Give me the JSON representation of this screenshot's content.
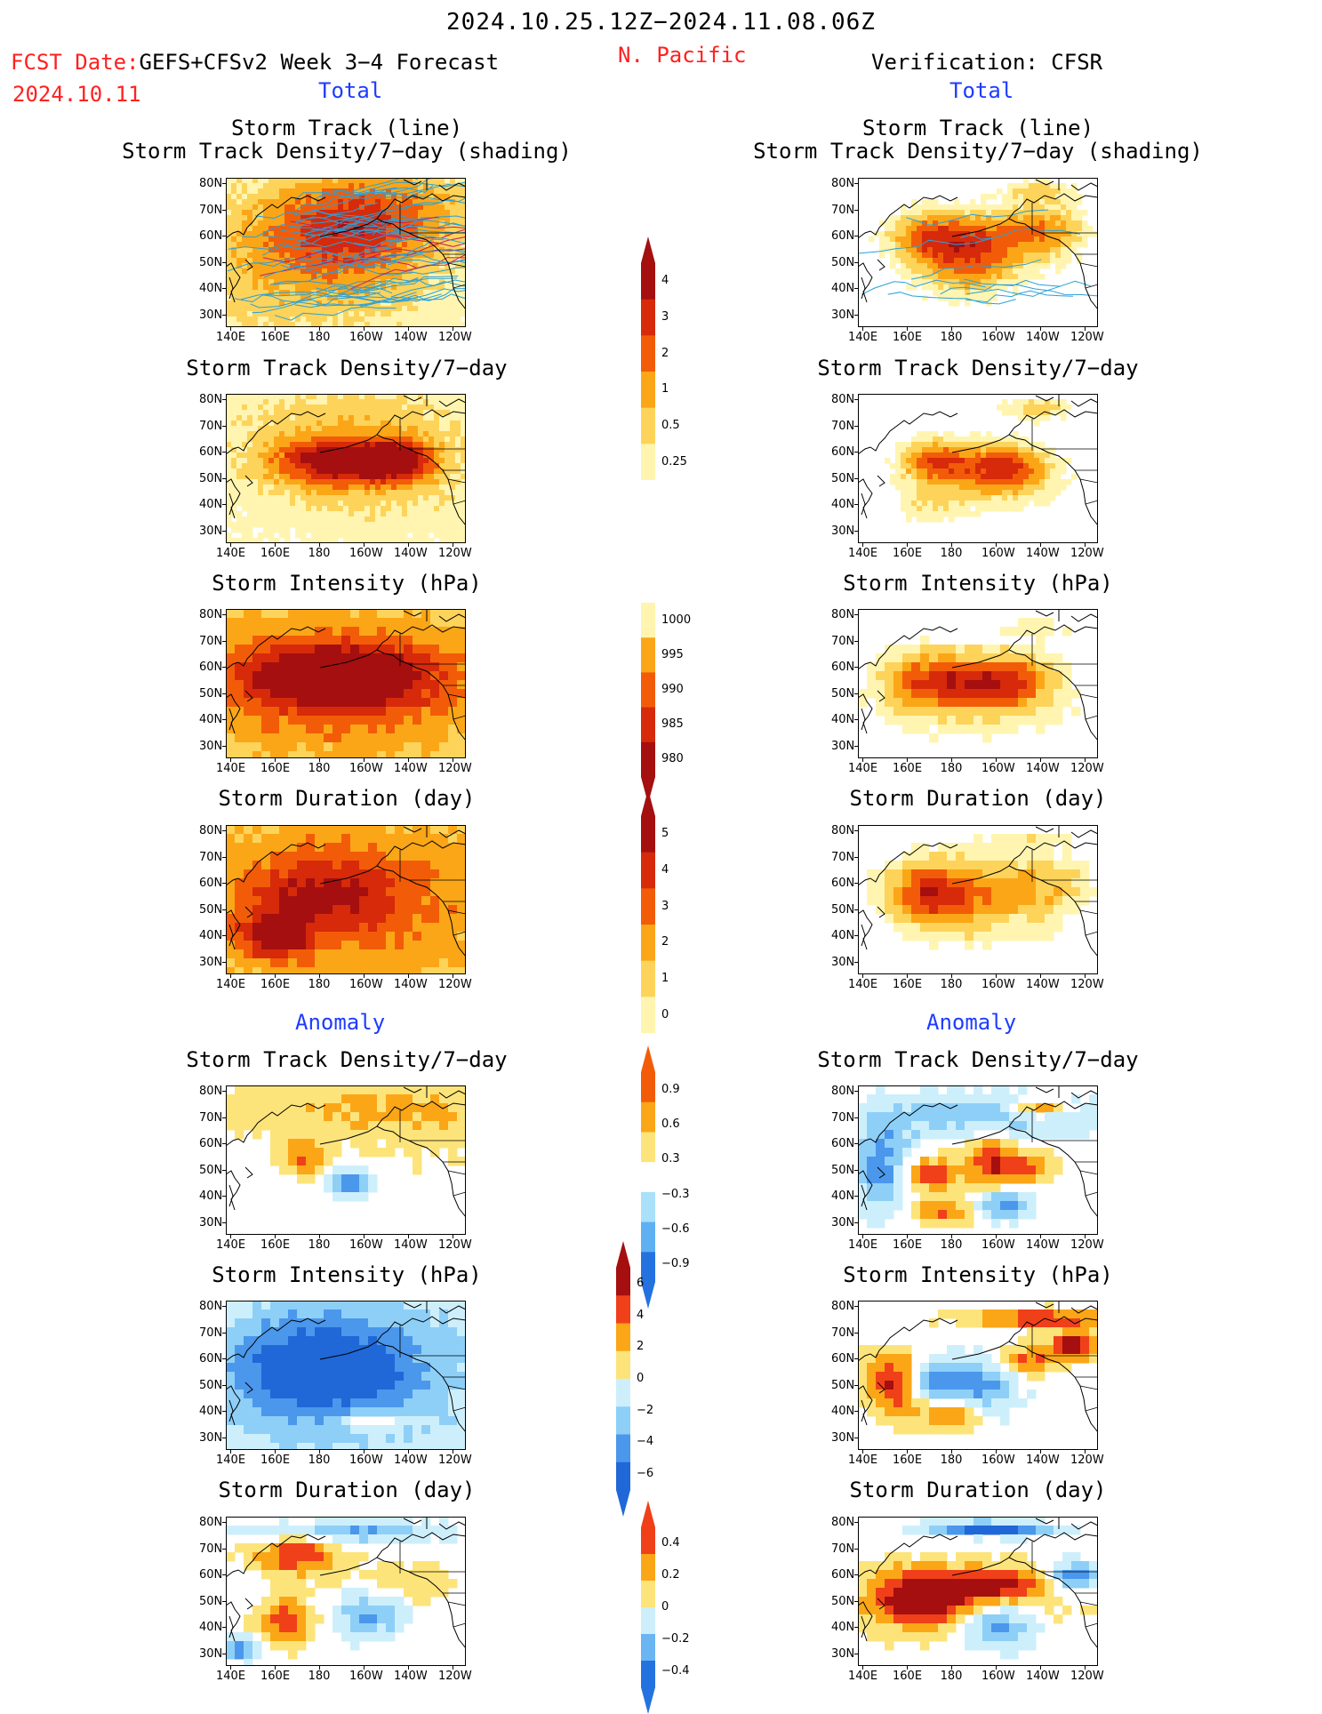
{
  "header": {
    "title": "2024.10.25.12Z−2024.11.08.06Z",
    "fcst_label": "FCST Date:",
    "fcst_model": "GEFS+CFSv2 Week 3−4 Forecast",
    "fcst_date": "2024.10.11",
    "region": "N. Pacific",
    "verification": "Verification: CFSR",
    "total_left": "Total",
    "total_right": "Total",
    "anomaly_left": "Anomaly",
    "anomaly_right": "Anomaly"
  },
  "panel_titles": {
    "track_line": "Storm Track (line)",
    "track_shading": "Storm Track Density/7−day (shading)",
    "density": "Storm Track Density/7−day",
    "intensity": "Storm Intensity (hPa)",
    "duration": "Storm Duration (day)"
  },
  "axes": {
    "lat_labels": [
      "80N",
      "70N",
      "60N",
      "50N",
      "40N",
      "30N"
    ],
    "lon_labels": [
      "140E",
      "160E",
      "180",
      "160W",
      "140W",
      "120W"
    ]
  },
  "colorbars": {
    "density_total": {
      "labels": [
        "4",
        "3",
        "2",
        "1",
        "0.5",
        "0.25"
      ],
      "colors": [
        "#a50f0f",
        "#d62a0a",
        "#f25c08",
        "#fba617",
        "#fdd35a",
        "#fff5b0"
      ]
    },
    "intensity_total": {
      "labels": [
        "1000",
        "995",
        "990",
        "985",
        "980"
      ],
      "colors": [
        "#fff5b0",
        "#fba617",
        "#f25c08",
        "#d62a0a",
        "#a50f0f"
      ]
    },
    "duration_total": {
      "labels": [
        "5",
        "4",
        "3",
        "2",
        "1",
        "0"
      ],
      "colors": [
        "#a50f0f",
        "#d62a0a",
        "#f25c08",
        "#fba617",
        "#fdd35a",
        "#fff5b0"
      ]
    },
    "density_anom": {
      "labels": [
        "0.9",
        "0.6",
        "0.3",
        "−0.3",
        "−0.6",
        "−0.9"
      ],
      "colors": [
        "#f25c08",
        "#fba617",
        "#fde47a",
        "#ffffff",
        "#a9e0fa",
        "#5fb0f2",
        "#2472e0"
      ]
    },
    "intensity_anom": {
      "labels": [
        "6",
        "4",
        "2",
        "0",
        "−2",
        "−4",
        "−6"
      ],
      "colors": [
        "#a50f0f",
        "#f0401a",
        "#fba617",
        "#fde47a",
        "#cdeffc",
        "#8ecff7",
        "#4a97ec",
        "#2068d8"
      ]
    },
    "duration_anom": {
      "labels": [
        "0.4",
        "0.2",
        "0",
        "−0.2",
        "−0.4"
      ],
      "colors": [
        "#f0401a",
        "#fba617",
        "#fde47a",
        "#cdeffc",
        "#6bb5f2",
        "#2472e0"
      ]
    }
  },
  "colors": {
    "track_line": "#2aa0d8",
    "track_line_dense": "#c02060",
    "coast": "#000000"
  }
}
